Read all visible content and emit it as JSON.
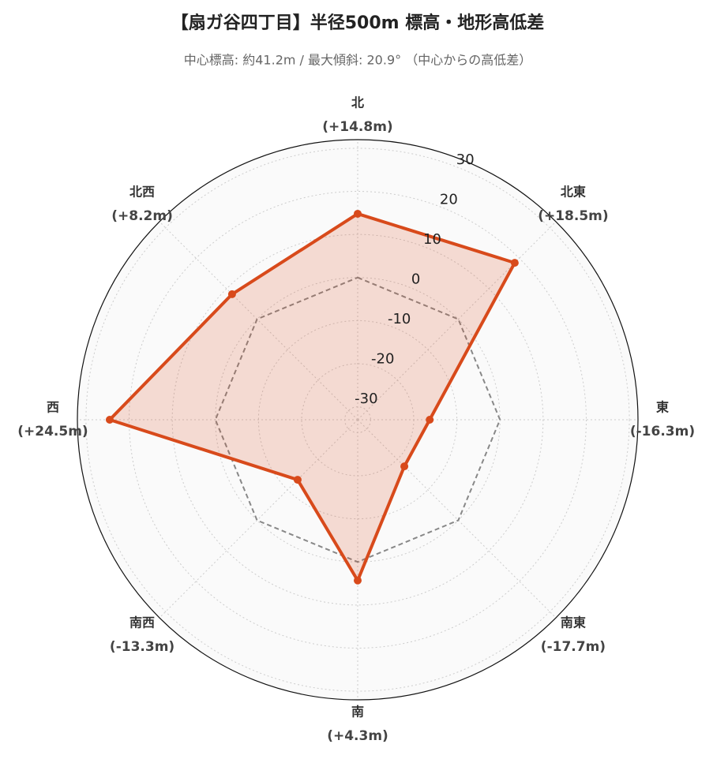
{
  "chart_data": {
    "type": "radar",
    "title": "【扇ガ谷四丁目】半径500m 標高・地形高低差",
    "subtitle": "中心標高: 約41.2m / 最大傾斜: 20.9° （中心からの高低差）",
    "categories": [
      "北",
      "北東",
      "東",
      "南東",
      "南",
      "南西",
      "西",
      "北西"
    ],
    "values": [
      14.8,
      18.5,
      -16.3,
      -17.7,
      4.3,
      -13.3,
      24.5,
      8.2
    ],
    "value_labels": [
      "(+14.8m)",
      "(+18.5m)",
      "(-16.3m)",
      "(-17.7m)",
      "(+4.3m)",
      "(-13.3m)",
      "(+24.5m)",
      "(+8.2m)"
    ],
    "color": "#d84a1b",
    "ylim": [
      -33,
      32
    ],
    "yticks": [
      -30,
      -20,
      -10,
      0,
      10,
      20,
      30
    ],
    "reference_line": 0,
    "grid": true
  }
}
